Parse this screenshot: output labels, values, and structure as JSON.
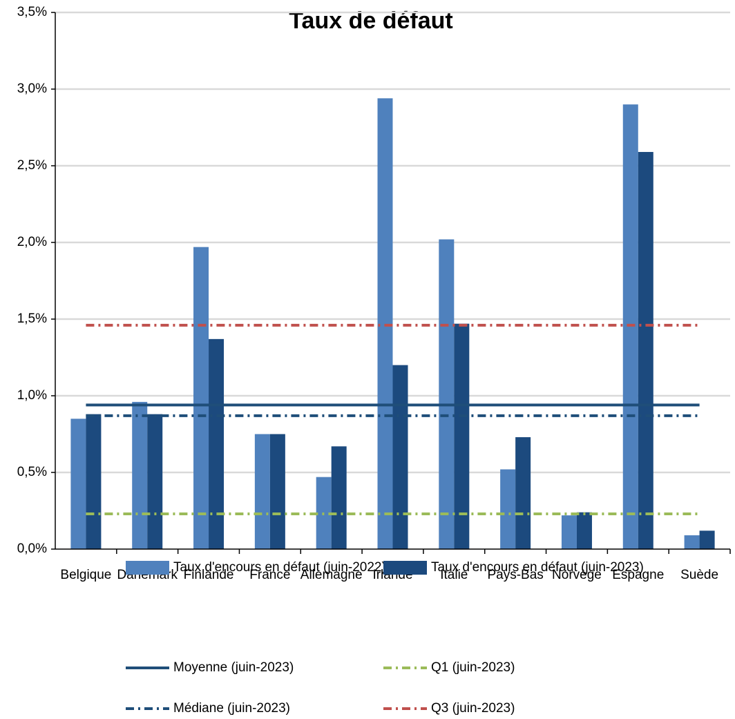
{
  "chart_data": {
    "type": "bar",
    "title": "Taux de défaut",
    "categories": [
      "Belgique",
      "Danemark",
      "Finlande",
      "France",
      "Allemagne",
      "Irlande",
      "Italie",
      "Pays-Bas",
      "Norvège",
      "Espagne",
      "Suède"
    ],
    "series": [
      {
        "name": "Taux d'encours en défaut (juin-2022)",
        "color": "#4f81bd",
        "values": [
          0.85,
          0.96,
          1.97,
          0.75,
          0.47,
          2.94,
          2.02,
          0.52,
          0.22,
          2.9,
          0.09
        ]
      },
      {
        "name": "Taux d'encours en défaut (juin-2023)",
        "color": "#1c4a7e",
        "values": [
          0.88,
          0.88,
          1.37,
          0.75,
          0.67,
          1.2,
          1.47,
          0.73,
          0.24,
          2.59,
          0.12
        ]
      }
    ],
    "reference_lines": [
      {
        "name": "Moyenne (juin-2023)",
        "color": "#1f4e79",
        "style": "solid",
        "value": 0.94
      },
      {
        "name": "Q1 (juin-2023)",
        "color": "#9bbb59",
        "style": "dashdot",
        "value": 0.23
      },
      {
        "name": "Médiane (juin-2023)",
        "color": "#1f4e79",
        "style": "dashdot",
        "value": 0.87
      },
      {
        "name": "Q3 (juin-2023)",
        "color": "#c0504d",
        "style": "dashdot",
        "value": 1.46
      }
    ],
    "ylim": [
      0,
      3.5
    ],
    "yticks": [
      {
        "value": 0,
        "label": "0,0%"
      },
      {
        "value": 0.5,
        "label": "0,5%"
      },
      {
        "value": 1,
        "label": "1,0%"
      },
      {
        "value": 1.5,
        "label": "1,5%"
      },
      {
        "value": 2,
        "label": "2,0%"
      },
      {
        "value": 2.5,
        "label": "2,5%"
      },
      {
        "value": 3,
        "label": "3,0%"
      },
      {
        "value": 3.5,
        "label": "3,5%"
      }
    ],
    "grid": true
  }
}
